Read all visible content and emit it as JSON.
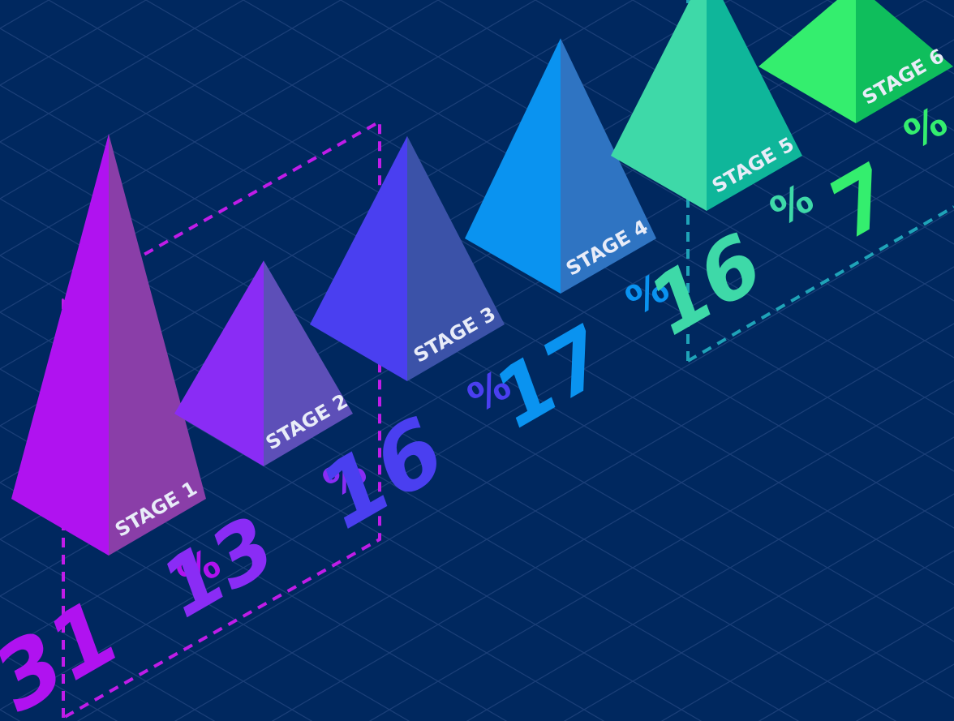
{
  "colors": {
    "background": "#00285f",
    "grid": "#1b3f78",
    "bracket_magenta": "#c01ce8",
    "bracket_teal": "#1fa3b8"
  },
  "chart_data": {
    "type": "bar",
    "title": "",
    "categories": [
      "STAGE 1",
      "STAGE 2",
      "STAGE 3",
      "STAGE 4",
      "STAGE 5",
      "STAGE 6"
    ],
    "values": [
      31,
      13,
      16,
      17,
      16,
      7
    ],
    "unit": "%",
    "value_labels": [
      "31",
      "13",
      "16",
      "17",
      "16",
      "7"
    ],
    "series_colors": [
      "#b012f0",
      "#8a2cf5",
      "#4a3ff0",
      "#0a93f0",
      "#3ed9a8",
      "#34ee6e"
    ],
    "side_colors": [
      "#8a3ea8",
      "#5d4fb8",
      "#3b52a8",
      "#2f74c2",
      "#0fb69a",
      "#0fbe5c"
    ],
    "shape": "pyramid",
    "grid": true,
    "legend": "none"
  }
}
